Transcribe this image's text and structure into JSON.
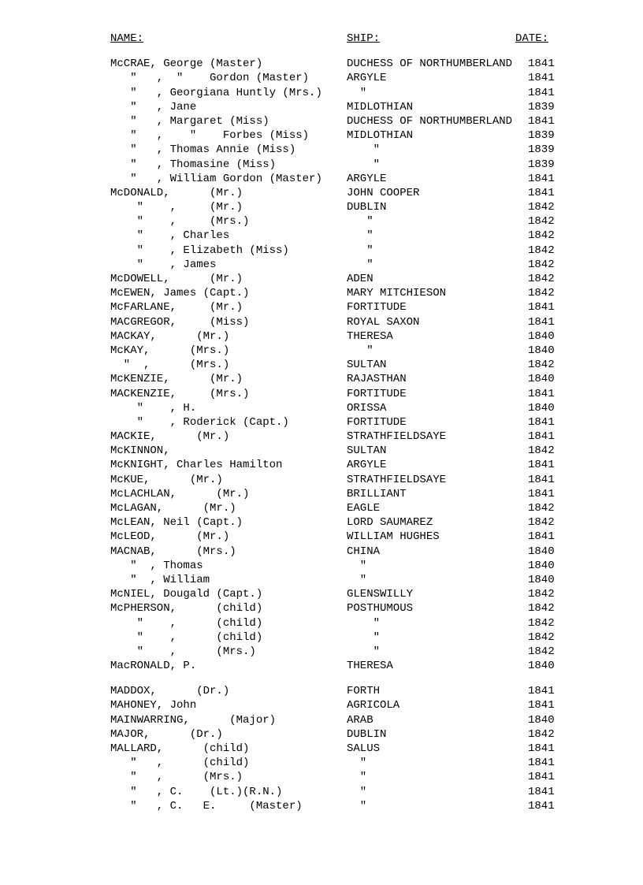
{
  "headers": {
    "name": "NAME:",
    "ship": "SHIP:",
    "date": "DATE:"
  },
  "rows": [
    {
      "name": "McCRAE, George (Master)",
      "ship": "DUCHESS OF NORTHUMBERLAND",
      "date": "1841"
    },
    {
      "name": "   \"   ,  \"    Gordon (Master)",
      "ship": "ARGYLE",
      "date": "1841"
    },
    {
      "name": "   \"   , Georgiana Huntly (Mrs.)",
      "ship": "  \"",
      "date": "1841"
    },
    {
      "name": "   \"   , Jane",
      "ship": "MIDLOTHIAN",
      "date": "1839"
    },
    {
      "name": "   \"   , Margaret (Miss)",
      "ship": "DUCHESS OF NORTHUMBERLAND",
      "date": "1841"
    },
    {
      "name": "   \"   ,    \"    Forbes (Miss)",
      "ship": "MIDLOTHIAN",
      "date": "1839"
    },
    {
      "name": "   \"   , Thomas Annie (Miss)",
      "ship": "    \"",
      "date": "1839"
    },
    {
      "name": "   \"   , Thomasine (Miss)",
      "ship": "    \"",
      "date": "1839"
    },
    {
      "name": "   \"   , William Gordon (Master)",
      "ship": "ARGYLE",
      "date": "1841"
    },
    {
      "name": "McDONALD,      (Mr.)",
      "ship": "JOHN COOPER",
      "date": "1841"
    },
    {
      "name": "    \"    ,     (Mr.)",
      "ship": "DUBLIN",
      "date": "1842"
    },
    {
      "name": "    \"    ,     (Mrs.)",
      "ship": "   \"",
      "date": "1842"
    },
    {
      "name": "    \"    , Charles",
      "ship": "   \"",
      "date": "1842"
    },
    {
      "name": "    \"    , Elizabeth (Miss)",
      "ship": "   \"",
      "date": "1842"
    },
    {
      "name": "    \"    , James",
      "ship": "   \"",
      "date": "1842"
    },
    {
      "name": "McDOWELL,      (Mr.)",
      "ship": "ADEN",
      "date": "1842"
    },
    {
      "name": "McEWEN, James (Capt.)",
      "ship": "MARY MITCHIESON",
      "date": "1842"
    },
    {
      "name": "McFARLANE,     (Mr.)",
      "ship": "FORTITUDE",
      "date": "1841"
    },
    {
      "name": "MACGREGOR,     (Miss)",
      "ship": "ROYAL SAXON",
      "date": "1841"
    },
    {
      "name": "MACKAY,      (Mr.)",
      "ship": "THERESA",
      "date": "1840"
    },
    {
      "name": "McKAY,      (Mrs.)",
      "ship": "   \"",
      "date": "1840"
    },
    {
      "name": "  \"  ,      (Mrs.)",
      "ship": "SULTAN",
      "date": "1842"
    },
    {
      "name": "McKENZIE,      (Mr.)",
      "ship": "RAJASTHAN",
      "date": "1840"
    },
    {
      "name": "MACKENZIE,     (Mrs.)",
      "ship": "FORTITUDE",
      "date": "1841"
    },
    {
      "name": "    \"    , H.",
      "ship": "ORISSA",
      "date": "1840"
    },
    {
      "name": "    \"    , Roderick (Capt.)",
      "ship": "FORTITUDE",
      "date": "1841"
    },
    {
      "name": "MACKIE,      (Mr.)",
      "ship": "STRATHFIELDSAYE",
      "date": "1841"
    },
    {
      "name": "McKINNON,",
      "ship": "SULTAN",
      "date": "1842"
    },
    {
      "name": "McKNIGHT, Charles Hamilton",
      "ship": "ARGYLE",
      "date": "1841"
    },
    {
      "name": "McKUE,      (Mr.)",
      "ship": "STRATHFIELDSAYE",
      "date": "1841"
    },
    {
      "name": "McLACHLAN,      (Mr.)",
      "ship": "BRILLIANT",
      "date": "1841"
    },
    {
      "name": "McLAGAN,      (Mr.)",
      "ship": "EAGLE",
      "date": "1842"
    },
    {
      "name": "McLEAN, Neil (Capt.)",
      "ship": "LORD SAUMAREZ",
      "date": "1842"
    },
    {
      "name": "McLEOD,      (Mr.)",
      "ship": "WILLIAM HUGHES",
      "date": "1841"
    },
    {
      "name": "MACNAB,      (Mrs.)",
      "ship": "CHINA",
      "date": "1840"
    },
    {
      "name": "   \"  , Thomas",
      "ship": "  \"",
      "date": "1840"
    },
    {
      "name": "   \"  , William",
      "ship": "  \"",
      "date": "1840"
    },
    {
      "name": "McNIEL, Dougald (Capt.)",
      "ship": "GLENSWILLY",
      "date": "1842"
    },
    {
      "name": "McPHERSON,      (child)",
      "ship": "POSTHUMOUS",
      "date": "1842"
    },
    {
      "name": "    \"    ,      (child)",
      "ship": "    \"",
      "date": "1842"
    },
    {
      "name": "    \"    ,      (child)",
      "ship": "    \"",
      "date": "1842"
    },
    {
      "name": "    \"    ,      (Mrs.)",
      "ship": "    \"",
      "date": "1842"
    },
    {
      "name": "MacRONALD, P.",
      "ship": "THERESA",
      "date": "1840"
    }
  ],
  "rows2": [
    {
      "name": "MADDOX,      (Dr.)",
      "ship": "FORTH",
      "date": "1841"
    },
    {
      "name": "MAHONEY, John",
      "ship": "AGRICOLA",
      "date": "1841"
    },
    {
      "name": "MAINWARRING,      (Major)",
      "ship": "ARAB",
      "date": "1840"
    },
    {
      "name": "MAJOR,      (Dr.)",
      "ship": "DUBLIN",
      "date": "1842"
    },
    {
      "name": "MALLARD,      (child)",
      "ship": "SALUS",
      "date": "1841"
    },
    {
      "name": "   \"   ,      (child)",
      "ship": "  \"",
      "date": "1841"
    },
    {
      "name": "   \"   ,      (Mrs.)",
      "ship": "  \"",
      "date": "1841"
    },
    {
      "name": "   \"   , C.    (Lt.)(R.N.)",
      "ship": "  \"",
      "date": "1841"
    },
    {
      "name": "   \"   , C.   E.     (Master)",
      "ship": "  \"",
      "date": "1841"
    }
  ]
}
